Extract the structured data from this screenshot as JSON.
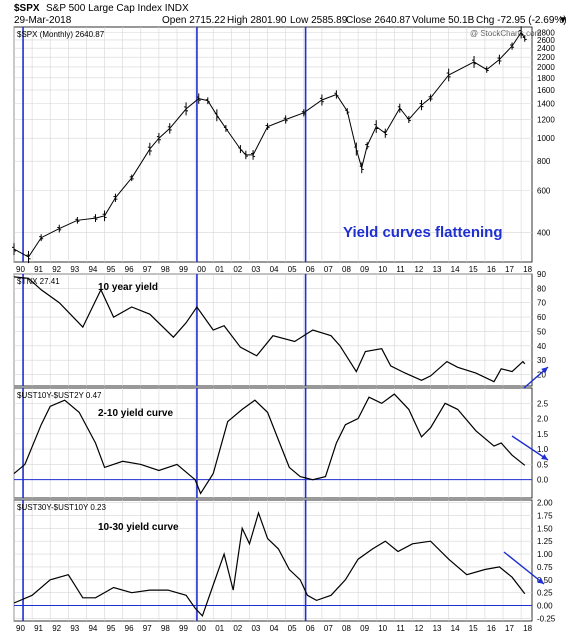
{
  "header": {
    "symbol": "$SPX",
    "name": "S&P 500 Large Cap Index INDX",
    "date": "29-Mar-2018",
    "open": "Open 2715.22",
    "high": "High 2801.90",
    "low": "Low 2585.89",
    "close": "Close 2640.87",
    "volume": "Volume 50.1B",
    "chg": "Chg -72.95 (-2.69%)",
    "chg_arrow": "▼",
    "watermark": "@ StockCharts.com"
  },
  "chart_data": [
    {
      "type": "line",
      "style": "ohlc-bars",
      "legend": "$SPX (Monthly) 2640.87",
      "annotation": "Yield curves flattening",
      "yscale": "log",
      "ylim": [
        300,
        2950
      ],
      "yticks": [
        400,
        600,
        800,
        1000,
        1200,
        1400,
        1600,
        1800,
        2000,
        2200,
        2400,
        2600,
        2800
      ],
      "x": [
        1990.0,
        1990.8,
        1991.5,
        1992.5,
        1993.5,
        1994.5,
        1995.0,
        1995.6,
        1996.5,
        1997.5,
        1998.0,
        1998.6,
        1999.5,
        2000.2,
        2000.7,
        2001.2,
        2001.7,
        2002.5,
        2002.8,
        2003.2,
        2004.0,
        2005.0,
        2006.0,
        2007.0,
        2007.8,
        2008.4,
        2008.9,
        2009.2,
        2009.5,
        2010.0,
        2010.5,
        2011.3,
        2011.8,
        2012.5,
        2013.0,
        2014.0,
        2015.4,
        2016.1,
        2016.8,
        2017.5,
        2018.0,
        2018.2
      ],
      "values": [
        340,
        315,
        380,
        415,
        450,
        460,
        470,
        560,
        680,
        900,
        1000,
        1100,
        1330,
        1470,
        1440,
        1250,
        1100,
        900,
        850,
        850,
        1120,
        1200,
        1280,
        1450,
        1530,
        1300,
        900,
        750,
        930,
        1120,
        1050,
        1340,
        1200,
        1380,
        1480,
        1850,
        2100,
        1950,
        2150,
        2450,
        2800,
        2640
      ]
    },
    {
      "type": "line",
      "legend": "$TNX 27.41",
      "label": "10 year yield",
      "ylim": [
        12,
        90
      ],
      "yticks": [
        20,
        30,
        40,
        50,
        60,
        70,
        80,
        90
      ],
      "x": [
        1990.0,
        1990.8,
        1991.5,
        1992.5,
        1993.8,
        1994.8,
        1995.5,
        1996.5,
        1997.5,
        1998.8,
        1999.5,
        2000.1,
        2001.0,
        2001.6,
        2002.5,
        2003.4,
        2004.3,
        2005.5,
        2006.5,
        2007.5,
        2008.0,
        2008.9,
        2009.4,
        2010.3,
        2010.8,
        2011.6,
        2012.5,
        2013.0,
        2013.9,
        2014.5,
        2015.5,
        2016.5,
        2016.9,
        2017.5,
        2018.1,
        2018.2
      ],
      "values": [
        88,
        87,
        79,
        70,
        53,
        79,
        60,
        67,
        62,
        46,
        56,
        67,
        51,
        54,
        39,
        33,
        47,
        43,
        51,
        47,
        40,
        22,
        36,
        38,
        26,
        21,
        16,
        19,
        29,
        25,
        21,
        15,
        24,
        22,
        29,
        27.41
      ]
    },
    {
      "type": "line",
      "legend": "$UST10Y-$UST2Y 0.47",
      "label": "2-10 yield curve",
      "ylim": [
        -0.6,
        3.0
      ],
      "yticks": [
        0.0,
        0.5,
        1.0,
        1.5,
        2.0,
        2.5
      ],
      "x": [
        1990.0,
        1990.6,
        1991.5,
        1992.0,
        1992.8,
        1993.6,
        1994.5,
        1995.0,
        1996.0,
        1997.0,
        1998.0,
        1999.0,
        2000.0,
        2000.3,
        2001.0,
        2001.8,
        2002.6,
        2003.3,
        2004.0,
        2004.6,
        2005.2,
        2005.8,
        2006.5,
        2007.2,
        2007.8,
        2008.3,
        2009.0,
        2009.6,
        2010.3,
        2011.0,
        2011.8,
        2012.5,
        2013.0,
        2013.8,
        2014.5,
        2015.5,
        2016.5,
        2016.9,
        2017.5,
        2018.2
      ],
      "values": [
        0.2,
        0.5,
        1.8,
        2.4,
        2.6,
        2.2,
        1.2,
        0.4,
        0.6,
        0.5,
        0.3,
        0.5,
        0.0,
        -0.45,
        0.2,
        1.9,
        2.3,
        2.6,
        2.2,
        1.3,
        0.4,
        0.1,
        0.0,
        0.1,
        1.2,
        1.8,
        2.0,
        2.7,
        2.5,
        2.8,
        2.3,
        1.4,
        1.7,
        2.5,
        2.3,
        1.6,
        1.1,
        1.2,
        0.8,
        0.47
      ]
    },
    {
      "type": "line",
      "legend": "$UST30Y-$UST10Y 0.23",
      "label": "10-30 yield curve",
      "ylim": [
        -0.3,
        2.05
      ],
      "yticks": [
        -0.25,
        0.0,
        0.25,
        0.5,
        0.75,
        1.0,
        1.25,
        1.5,
        1.75,
        2.0
      ],
      "x": [
        1990.0,
        1991.0,
        1992.0,
        1993.0,
        1993.8,
        1994.5,
        1995.5,
        1996.5,
        1997.5,
        1998.5,
        1999.5,
        2000.0,
        2000.4,
        2001.0,
        2001.6,
        2002.1,
        2002.6,
        2003.0,
        2003.5,
        2004.0,
        2004.6,
        2005.2,
        2005.8,
        2006.2,
        2006.7,
        2007.5,
        2008.3,
        2009.0,
        2009.8,
        2010.5,
        2011.2,
        2012.0,
        2013.0,
        2014.0,
        2015.0,
        2016.0,
        2016.8,
        2017.5,
        2018.2
      ],
      "values": [
        0.05,
        0.2,
        0.5,
        0.6,
        0.15,
        0.15,
        0.35,
        0.25,
        0.3,
        0.3,
        0.2,
        -0.05,
        -0.2,
        0.4,
        1.0,
        0.3,
        1.5,
        1.2,
        1.8,
        1.3,
        1.1,
        0.7,
        0.5,
        0.2,
        0.1,
        0.2,
        0.5,
        0.9,
        1.1,
        1.25,
        1.05,
        1.2,
        1.25,
        0.9,
        0.6,
        0.7,
        0.75,
        0.55,
        0.23
      ]
    }
  ],
  "x_axis": {
    "xlim": [
      1990.0,
      2018.6
    ],
    "tick_years": [
      1990,
      1991,
      1992,
      1993,
      1994,
      1995,
      1996,
      1997,
      1998,
      1999,
      2000,
      2001,
      2002,
      2003,
      2004,
      2005,
      2006,
      2007,
      2008,
      2009,
      2010,
      2011,
      2012,
      2013,
      2014,
      2015,
      2016,
      2017,
      2018
    ],
    "tick_labels": [
      "90",
      "91",
      "92",
      "93",
      "94",
      "95",
      "96",
      "97",
      "98",
      "99",
      "00",
      "01",
      "02",
      "03",
      "04",
      "05",
      "06",
      "07",
      "08",
      "09",
      "10",
      "11",
      "12",
      "13",
      "14",
      "15",
      "16",
      "17",
      "18"
    ],
    "markers": [
      1990.5,
      2000.1,
      2006.1
    ],
    "grid": true
  },
  "colors": {
    "series": "#000000",
    "marker": "#1f2fd0",
    "annotation": "#1f2fd0",
    "grid": "#d6d6d6",
    "zero_line": "#1f2fd0"
  }
}
